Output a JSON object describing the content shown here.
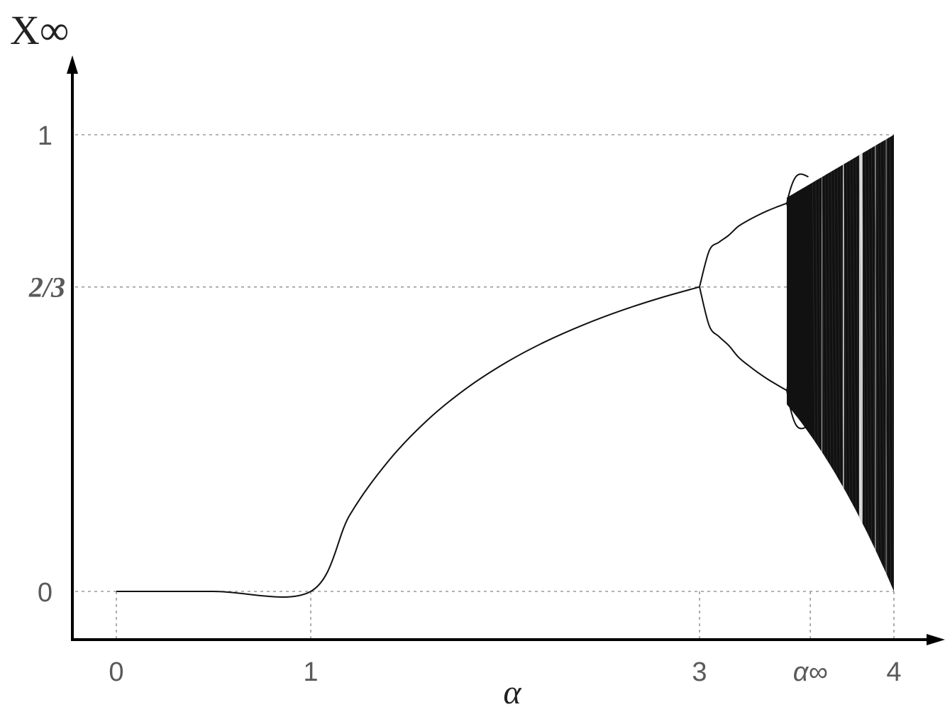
{
  "chart_data": {
    "type": "line",
    "title": "",
    "xlabel": "α",
    "ylabel": "X∞",
    "xlim": [
      0,
      4
    ],
    "ylim": [
      0,
      1
    ],
    "x_ticks": [
      {
        "value": 0,
        "label": "0"
      },
      {
        "value": 1,
        "label": "1"
      },
      {
        "value": 3,
        "label": "3"
      },
      {
        "value": 3.57,
        "label": "α∞"
      },
      {
        "value": 4,
        "label": "4"
      }
    ],
    "y_ticks": [
      {
        "value": 0,
        "label": "0",
        "highlight": false
      },
      {
        "value": 0.6667,
        "label": "2/3",
        "highlight": true
      },
      {
        "value": 1,
        "label": "1",
        "highlight": false
      }
    ],
    "highlight_color": "#e53935",
    "grid": "dashed guide lines at tick values",
    "series": [
      {
        "points": [
          [
            0,
            0
          ],
          [
            0.5,
            0
          ],
          [
            1,
            0
          ],
          [
            1.2,
            0.1667
          ],
          [
            1.4,
            0.2857
          ],
          [
            1.6,
            0.375
          ],
          [
            1.8,
            0.4444
          ],
          [
            2.0,
            0.5
          ],
          [
            2.2,
            0.5455
          ],
          [
            2.4,
            0.5833
          ],
          [
            2.6,
            0.6154
          ],
          [
            2.8,
            0.6429
          ],
          [
            3.0,
            0.6667
          ]
        ]
      },
      {
        "points": [
          [
            3.0,
            0.6667
          ],
          [
            3.05,
            0.7461
          ],
          [
            3.1,
            0.7646
          ],
          [
            3.15,
            0.7798
          ],
          [
            3.2,
            0.7995
          ],
          [
            3.25,
            0.8124
          ],
          [
            3.3,
            0.8236
          ],
          [
            3.35,
            0.8335
          ],
          [
            3.4,
            0.8422
          ],
          [
            3.449,
            0.85
          ]
        ]
      },
      {
        "points": [
          [
            3.0,
            0.6667
          ],
          [
            3.05,
            0.5817
          ],
          [
            3.1,
            0.558
          ],
          [
            3.15,
            0.5386
          ],
          [
            3.2,
            0.513
          ],
          [
            3.25,
            0.4953
          ],
          [
            3.3,
            0.4794
          ],
          [
            3.35,
            0.4649
          ],
          [
            3.4,
            0.452
          ],
          [
            3.449,
            0.44
          ]
        ]
      }
    ],
    "chaotic_region": {
      "x_start": 3.449,
      "x_end": 4,
      "y_range": [
        0,
        1
      ]
    }
  }
}
